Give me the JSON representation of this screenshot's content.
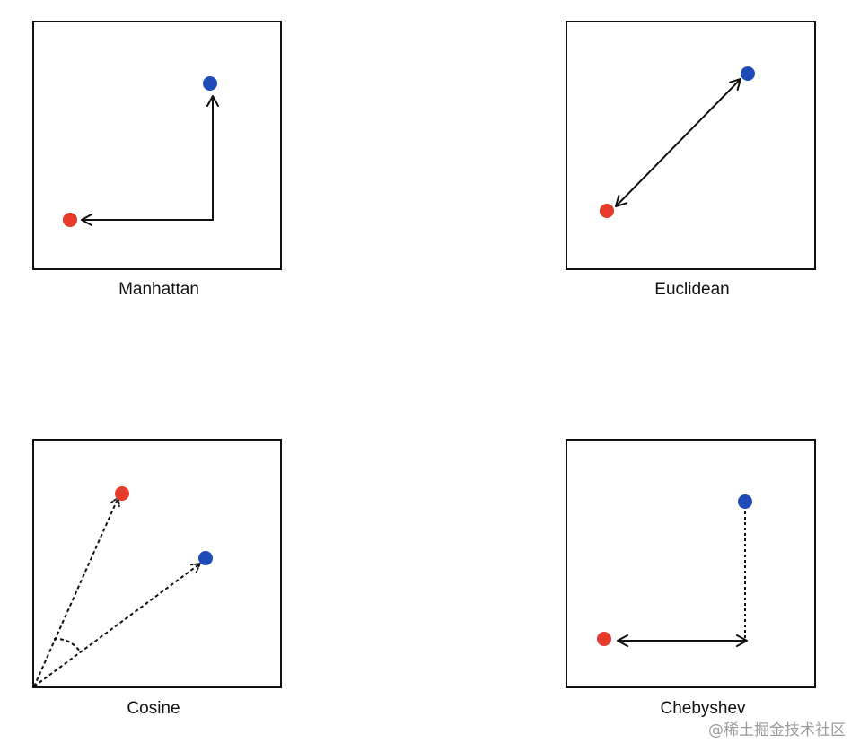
{
  "panels": {
    "manhattan": {
      "label": "Manhattan"
    },
    "euclidean": {
      "label": "Euclidean"
    },
    "cosine": {
      "label": "Cosine"
    },
    "chebyshev": {
      "label": "Chebyshev"
    }
  },
  "colors": {
    "point_a": "#e63a2b",
    "point_b": "#1f4bb8",
    "frame": "#111111"
  },
  "watermark": "@稀土掘金技术社区"
}
